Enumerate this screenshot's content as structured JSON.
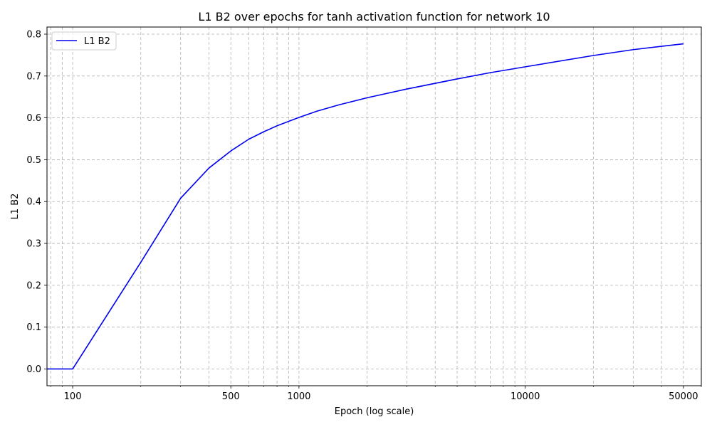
{
  "chart_data": {
    "type": "line",
    "title": "L1 B2 over epochs for tanh activation function for network 10",
    "xlabel": "Epoch (log scale)",
    "ylabel": "L1 B2",
    "xscale": "log",
    "xlim": [
      77,
      60000
    ],
    "ylim": [
      -0.04,
      0.817
    ],
    "xticks": [
      100,
      500,
      1000,
      10000,
      50000
    ],
    "xtick_labels": [
      "100",
      "500",
      "1000",
      "10000",
      "50000"
    ],
    "yticks": [
      0.0,
      0.1,
      0.2,
      0.3,
      0.4,
      0.5,
      0.6,
      0.7,
      0.8
    ],
    "ytick_labels": [
      "0.0",
      "0.1",
      "0.2",
      "0.3",
      "0.4",
      "0.5",
      "0.6",
      "0.7",
      "0.8"
    ],
    "grid": true,
    "legend_position": "top-left",
    "series": [
      {
        "name": "L1 B2",
        "color": "#0000ee",
        "x": [
          77,
          100,
          200,
          300,
          400,
          500,
          600,
          700,
          800,
          1000,
          1200,
          1500,
          2000,
          3000,
          5000,
          7000,
          10000,
          20000,
          30000,
          40000,
          50000
        ],
        "y": [
          0.0,
          0.0,
          0.255,
          0.408,
          0.48,
          0.521,
          0.549,
          0.567,
          0.581,
          0.601,
          0.616,
          0.631,
          0.648,
          0.669,
          0.693,
          0.708,
          0.722,
          0.749,
          0.763,
          0.771,
          0.777
        ]
      }
    ]
  }
}
